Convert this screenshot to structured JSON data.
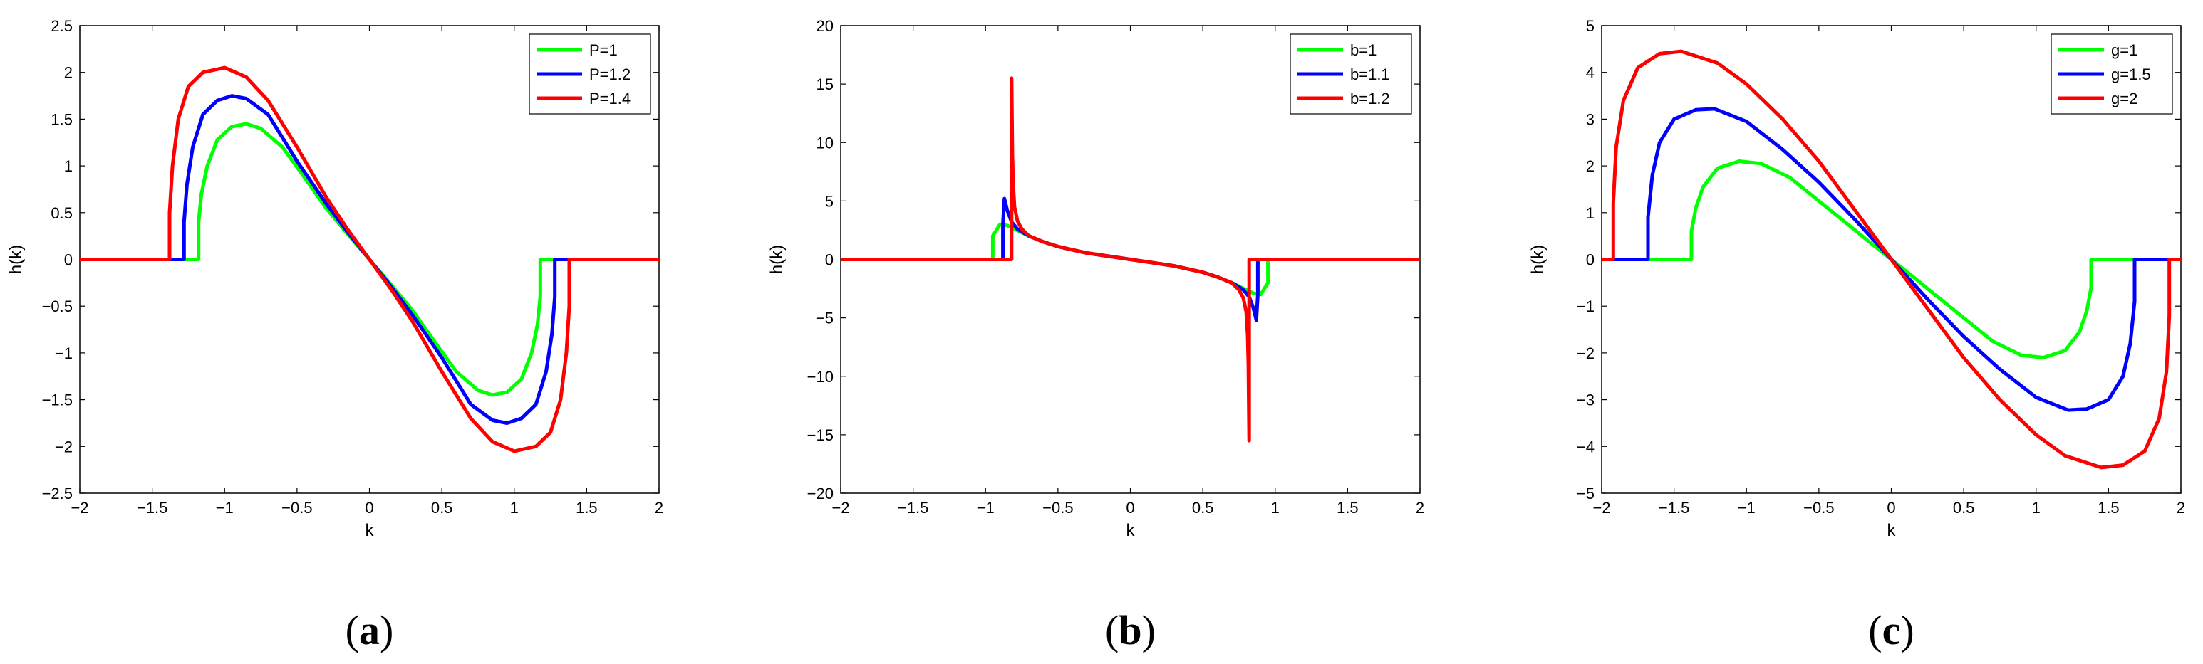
{
  "chart_data": [
    {
      "type": "line",
      "caption": {
        "open": "(",
        "letter": "a",
        "close": ")"
      },
      "xlabel": "k",
      "ylabel": "h(k)",
      "xlim": [
        -2,
        2
      ],
      "ylim": [
        -2.5,
        2.5
      ],
      "xticks": [
        -2,
        -1.5,
        -1,
        -0.5,
        0,
        0.5,
        1,
        1.5,
        2
      ],
      "yticks": [
        -2.5,
        -2,
        -1.5,
        -1,
        -0.5,
        0,
        0.5,
        1,
        1.5,
        2,
        2.5
      ],
      "grid": false,
      "legend_position": "top-right",
      "series": [
        {
          "name": "P=1",
          "color": "#00ff00",
          "x": [
            -2,
            -1.18,
            -1.18,
            -1.16,
            -1.12,
            -1.05,
            -0.95,
            -0.85,
            -0.75,
            -0.6,
            -0.45,
            -0.3,
            -0.15,
            0,
            0.15,
            0.3,
            0.45,
            0.6,
            0.75,
            0.85,
            0.95,
            1.05,
            1.12,
            1.16,
            1.18,
            1.18,
            2
          ],
          "y": [
            0,
            0,
            0.4,
            0.7,
            1.0,
            1.28,
            1.42,
            1.45,
            1.4,
            1.2,
            0.88,
            0.55,
            0.27,
            0,
            -0.27,
            -0.55,
            -0.88,
            -1.2,
            -1.4,
            -1.45,
            -1.42,
            -1.28,
            -1.0,
            -0.7,
            -0.4,
            0,
            0
          ]
        },
        {
          "name": "P=1.2",
          "color": "#0000ff",
          "x": [
            -2,
            -1.28,
            -1.28,
            -1.26,
            -1.22,
            -1.15,
            -1.05,
            -0.95,
            -0.85,
            -0.7,
            -0.5,
            -0.3,
            -0.15,
            0,
            0.15,
            0.3,
            0.5,
            0.7,
            0.85,
            0.95,
            1.05,
            1.15,
            1.22,
            1.26,
            1.28,
            1.28,
            2
          ],
          "y": [
            0,
            0,
            0.4,
            0.8,
            1.2,
            1.55,
            1.7,
            1.75,
            1.72,
            1.55,
            1.05,
            0.6,
            0.29,
            0,
            -0.29,
            -0.6,
            -1.05,
            -1.55,
            -1.72,
            -1.75,
            -1.7,
            -1.55,
            -1.2,
            -0.8,
            -0.4,
            0,
            0
          ]
        },
        {
          "name": "P=1.4",
          "color": "#ff0000",
          "x": [
            -2,
            -1.38,
            -1.38,
            -1.36,
            -1.32,
            -1.25,
            -1.15,
            -1.0,
            -0.85,
            -0.7,
            -0.5,
            -0.3,
            -0.15,
            0,
            0.15,
            0.3,
            0.5,
            0.7,
            0.85,
            1.0,
            1.15,
            1.25,
            1.32,
            1.36,
            1.38,
            1.38,
            2
          ],
          "y": [
            0,
            0,
            0.5,
            1.0,
            1.5,
            1.85,
            2.0,
            2.05,
            1.95,
            1.7,
            1.2,
            0.67,
            0.32,
            0,
            -0.32,
            -0.67,
            -1.2,
            -1.7,
            -1.95,
            -2.05,
            -2.0,
            -1.85,
            -1.5,
            -1.0,
            -0.5,
            0,
            0
          ]
        }
      ]
    },
    {
      "type": "line",
      "caption": {
        "open": "(",
        "letter": "b",
        "close": ")"
      },
      "xlabel": "k",
      "ylabel": "h(k)",
      "xlim": [
        -2,
        2
      ],
      "ylim": [
        -20,
        20
      ],
      "xticks": [
        -2,
        -1.5,
        -1,
        -0.5,
        0,
        0.5,
        1,
        1.5,
        2
      ],
      "yticks": [
        -20,
        -15,
        -10,
        -5,
        0,
        5,
        10,
        15,
        20
      ],
      "grid": false,
      "legend_position": "top-right",
      "series": [
        {
          "name": "b=1",
          "color": "#00ff00",
          "x": [
            -2,
            -0.95,
            -0.95,
            -0.9,
            -0.85,
            -0.8,
            -0.7,
            -0.6,
            -0.5,
            -0.3,
            -0.1,
            0,
            0.1,
            0.3,
            0.5,
            0.6,
            0.7,
            0.8,
            0.85,
            0.9,
            0.95,
            0.95,
            2
          ],
          "y": [
            0,
            0,
            2.0,
            3.0,
            2.9,
            2.6,
            2.0,
            1.5,
            1.1,
            0.55,
            0.18,
            0,
            -0.18,
            -0.55,
            -1.1,
            -1.5,
            -2.0,
            -2.6,
            -2.9,
            -3.0,
            -2.0,
            0,
            0
          ]
        },
        {
          "name": "b=1.1",
          "color": "#0000ff",
          "x": [
            -2,
            -0.88,
            -0.88,
            -0.87,
            -0.85,
            -0.82,
            -0.78,
            -0.7,
            -0.6,
            -0.5,
            -0.3,
            -0.1,
            0,
            0.1,
            0.3,
            0.5,
            0.6,
            0.7,
            0.78,
            0.82,
            0.85,
            0.87,
            0.88,
            0.88,
            2
          ],
          "y": [
            0,
            0,
            3.0,
            5.2,
            4.2,
            3.2,
            2.6,
            2.0,
            1.5,
            1.1,
            0.55,
            0.18,
            0,
            -0.18,
            -0.55,
            -1.1,
            -1.5,
            -2.0,
            -2.6,
            -3.2,
            -4.2,
            -5.2,
            -3.0,
            0,
            0
          ]
        },
        {
          "name": "b=1.2",
          "color": "#ff0000",
          "x": [
            -2,
            -0.82,
            -0.82,
            -0.815,
            -0.81,
            -0.8,
            -0.78,
            -0.75,
            -0.7,
            -0.6,
            -0.5,
            -0.3,
            -0.1,
            0,
            0.1,
            0.3,
            0.5,
            0.6,
            0.7,
            0.75,
            0.78,
            0.8,
            0.81,
            0.815,
            0.82,
            0.82,
            2
          ],
          "y": [
            0,
            0,
            15.5,
            9.0,
            6.5,
            4.5,
            3.3,
            2.6,
            2.0,
            1.5,
            1.1,
            0.55,
            0.18,
            0,
            -0.18,
            -0.55,
            -1.1,
            -1.5,
            -2.0,
            -2.6,
            -3.3,
            -4.5,
            -6.5,
            -9.0,
            -15.5,
            0,
            0
          ]
        }
      ]
    },
    {
      "type": "line",
      "caption": {
        "open": "(",
        "letter": "c",
        "close": ")"
      },
      "xlabel": "k",
      "ylabel": "h(k)",
      "xlim": [
        -2,
        2
      ],
      "ylim": [
        -5,
        5
      ],
      "xticks": [
        -2,
        -1.5,
        -1,
        -0.5,
        0,
        0.5,
        1,
        1.5,
        2
      ],
      "yticks": [
        -5,
        -4,
        -3,
        -2,
        -1,
        0,
        1,
        2,
        3,
        4,
        5
      ],
      "grid": false,
      "legend_position": "top-right",
      "series": [
        {
          "name": "g=1",
          "color": "#00ff00",
          "x": [
            -2,
            -1.38,
            -1.38,
            -1.35,
            -1.3,
            -1.2,
            -1.05,
            -0.9,
            -0.7,
            -0.5,
            -0.3,
            -0.15,
            0,
            0.15,
            0.3,
            0.5,
            0.7,
            0.9,
            1.05,
            1.2,
            1.3,
            1.35,
            1.38,
            1.38,
            2
          ],
          "y": [
            0,
            0,
            0.6,
            1.1,
            1.55,
            1.95,
            2.1,
            2.05,
            1.75,
            1.25,
            0.75,
            0.37,
            0,
            -0.37,
            -0.75,
            -1.25,
            -1.75,
            -2.05,
            -2.1,
            -1.95,
            -1.55,
            -1.1,
            -0.6,
            0,
            0
          ]
        },
        {
          "name": "g=1.5",
          "color": "#0000ff",
          "x": [
            -2,
            -1.68,
            -1.68,
            -1.65,
            -1.6,
            -1.5,
            -1.35,
            -1.22,
            -1.0,
            -0.75,
            -0.5,
            -0.25,
            0,
            0.25,
            0.5,
            0.75,
            1.0,
            1.22,
            1.35,
            1.5,
            1.6,
            1.65,
            1.68,
            1.68,
            2
          ],
          "y": [
            0,
            0,
            0.9,
            1.8,
            2.5,
            3.0,
            3.2,
            3.22,
            2.95,
            2.35,
            1.65,
            0.85,
            0,
            -0.85,
            -1.65,
            -2.35,
            -2.95,
            -3.22,
            -3.2,
            -3.0,
            -2.5,
            -1.8,
            -0.9,
            0,
            0
          ]
        },
        {
          "name": "g=2",
          "color": "#ff0000",
          "x": [
            -2,
            -1.92,
            -1.92,
            -1.9,
            -1.85,
            -1.75,
            -1.6,
            -1.45,
            -1.2,
            -1.0,
            -0.75,
            -0.5,
            -0.25,
            0,
            0.25,
            0.5,
            0.75,
            1.0,
            1.2,
            1.45,
            1.6,
            1.75,
            1.85,
            1.9,
            1.92,
            1.92,
            2
          ],
          "y": [
            0,
            0,
            1.2,
            2.4,
            3.4,
            4.1,
            4.4,
            4.45,
            4.2,
            3.75,
            3.0,
            2.1,
            1.05,
            0,
            -1.05,
            -2.1,
            -3.0,
            -3.75,
            -4.2,
            -4.45,
            -4.4,
            -4.1,
            -3.4,
            -2.4,
            -1.2,
            0,
            0
          ]
        }
      ]
    }
  ]
}
